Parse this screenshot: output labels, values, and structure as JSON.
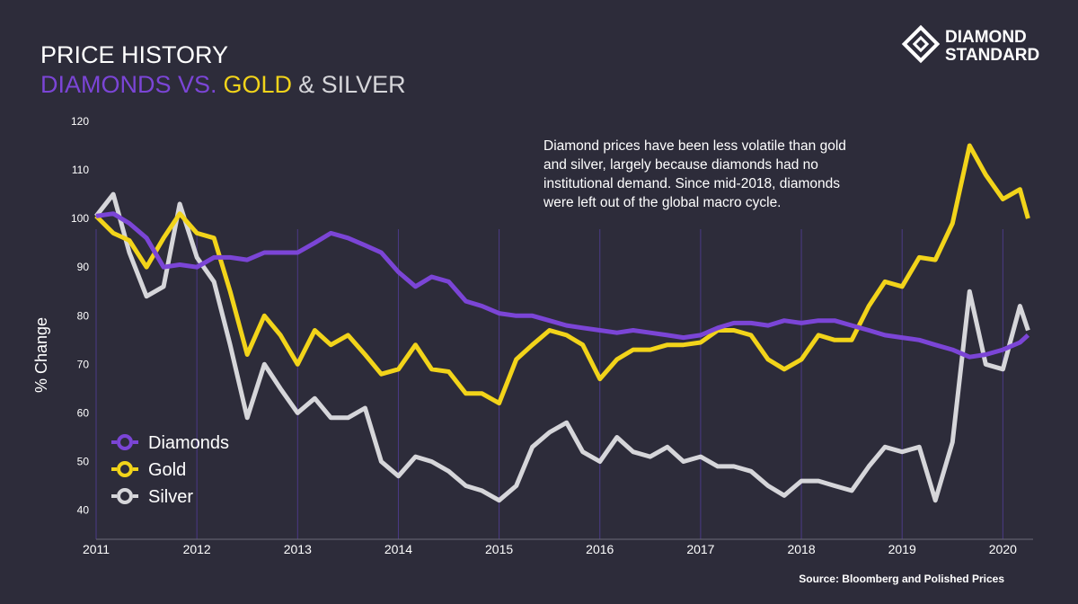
{
  "brand": {
    "lines": [
      "DIAMOND",
      "STANDARD"
    ]
  },
  "chart_data": {
    "type": "line",
    "title": "PRICE HISTORY",
    "subtitle_parts": [
      "DIAMONDS VS.",
      "GOLD",
      "& SILVER"
    ],
    "y_label": "% Change",
    "annotation": [
      "Diamond prices have been less volatile than gold",
      "and silver, largely because diamonds had no",
      "institutional demand. Since mid-2018, diamonds",
      "were left out of the global macro cycle."
    ],
    "source": "Source: Bloomberg and Polished Prices",
    "x": [
      2011,
      2011.17,
      2011.33,
      2011.5,
      2011.67,
      2011.83,
      2012,
      2012.17,
      2012.33,
      2012.5,
      2012.67,
      2012.83,
      2013,
      2013.17,
      2013.33,
      2013.5,
      2013.67,
      2013.83,
      2014,
      2014.17,
      2014.33,
      2014.5,
      2014.67,
      2014.83,
      2015,
      2015.17,
      2015.33,
      2015.5,
      2015.67,
      2015.83,
      2016,
      2016.17,
      2016.33,
      2016.5,
      2016.67,
      2016.83,
      2017,
      2017.17,
      2017.33,
      2017.5,
      2017.67,
      2017.83,
      2018,
      2018.17,
      2018.33,
      2018.5,
      2018.67,
      2018.83,
      2019,
      2019.17,
      2019.33,
      2019.5,
      2019.67,
      2019.83,
      2020,
      2020.17,
      2020.25
    ],
    "series": [
      {
        "name": "Diamonds",
        "color": "#7b45d6",
        "values": [
          100.5,
          101,
          99,
          96,
          90,
          90.5,
          90,
          92,
          92,
          91.5,
          93,
          93,
          93,
          95,
          97,
          96,
          94.5,
          93,
          89,
          86,
          88,
          87,
          83,
          82,
          80.5,
          80,
          80,
          79,
          78,
          77.5,
          77,
          76.5,
          77,
          76.5,
          76,
          75.5,
          76,
          77.5,
          78.5,
          78.5,
          78,
          79,
          78.5,
          79,
          79,
          78,
          77,
          76,
          75.5,
          75,
          74,
          73,
          71.5,
          72,
          73,
          74.5,
          76
        ]
      },
      {
        "name": "Gold",
        "color": "#f2d41a",
        "values": [
          100.5,
          97,
          95.5,
          90,
          96,
          101,
          97,
          96,
          85,
          72,
          80,
          76,
          70,
          77,
          74,
          76,
          72,
          68,
          69,
          74,
          69,
          68.5,
          64,
          64,
          62,
          71,
          74,
          77,
          76,
          74,
          67,
          71,
          73,
          73,
          74,
          74,
          74.5,
          77,
          77,
          76,
          71,
          69,
          71,
          76,
          75,
          75,
          82,
          87,
          86,
          92,
          91.5,
          99,
          115,
          109,
          104,
          106,
          100
        ]
      },
      {
        "name": "Silver",
        "color": "#d6d6da",
        "values": [
          100.5,
          105,
          93,
          84,
          86,
          103,
          92,
          87,
          74,
          59,
          70,
          65,
          60,
          63,
          59,
          59,
          61,
          50,
          47,
          51,
          50,
          48,
          45,
          44,
          42,
          45,
          53,
          56,
          58,
          52,
          50,
          55,
          52,
          51,
          53,
          50,
          51,
          49,
          49,
          48,
          45,
          43,
          46,
          46,
          45,
          44,
          49,
          53,
          52,
          53,
          42,
          54,
          85,
          70,
          69,
          82,
          77
        ]
      }
    ],
    "xlim": [
      2011,
      2020.3
    ],
    "ylim": [
      34,
      120
    ],
    "xticks": [
      2011,
      2012,
      2013,
      2014,
      2015,
      2016,
      2017,
      2018,
      2019,
      2020
    ],
    "yticks": [
      40,
      50,
      60,
      70,
      80,
      90,
      100,
      110,
      120
    ],
    "grid": true,
    "legend": "lower left"
  }
}
